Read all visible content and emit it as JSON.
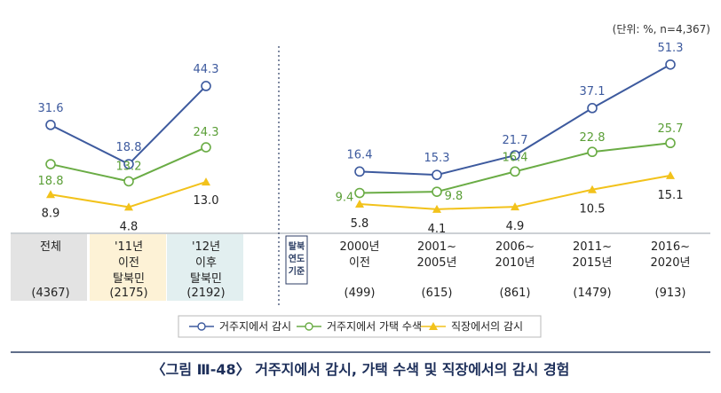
{
  "unit_note": "(단위: %, n=4,367)",
  "caption": "〈그림 Ⅲ-48〉 거주지에서 감시, 가택 수색 및 직장에서의 감시 경험",
  "side_label": [
    "탈북",
    "연도",
    "기준"
  ],
  "colors": {
    "series_residence_surveillance": "#3d5a9e",
    "series_house_search": "#6aac45",
    "series_workplace_surveillance": "#f2c21b",
    "label_blue": "#3d5a9e",
    "label_green": "#5a9e36",
    "label_dark": "#222222",
    "band_total": "#e3e3e3",
    "band_before2011": "#fdf2d6",
    "band_after2012": "#e2eff0",
    "rule": "#2c3e64"
  },
  "chart_data": [
    {
      "type": "line",
      "name": "by_period",
      "categories": [
        {
          "lines": [
            "전체"
          ],
          "n": "(4367)"
        },
        {
          "lines": [
            "'11년",
            "이전",
            "탈북민"
          ],
          "n": "(2175)"
        },
        {
          "lines": [
            "'12년",
            "이후",
            "탈북민"
          ],
          "n": "(2192)"
        }
      ],
      "series": [
        {
          "name": "거주지에서 감시",
          "values": [
            31.6,
            18.8,
            44.3
          ],
          "labels": [
            "31.6",
            "18.8",
            "44.3"
          ]
        },
        {
          "name": "거주지에서 가택 수색",
          "values": [
            18.8,
            13.2,
            24.3
          ],
          "labels": [
            "18.8",
            "13.2",
            "24.3"
          ]
        },
        {
          "name": "직장에서의 감시",
          "values": [
            8.9,
            4.8,
            13.0
          ],
          "labels": [
            "8.9",
            "4.8",
            "13.0"
          ]
        }
      ]
    },
    {
      "type": "line",
      "name": "by_defection_year",
      "categories": [
        {
          "lines": [
            "2000년",
            "이전"
          ],
          "n": "(499)"
        },
        {
          "lines": [
            "2001~",
            "2005년"
          ],
          "n": "(615)"
        },
        {
          "lines": [
            "2006~",
            "2010년"
          ],
          "n": "(861)"
        },
        {
          "lines": [
            "2011~",
            "2015년"
          ],
          "n": "(1479)"
        },
        {
          "lines": [
            "2016~",
            "2020년"
          ],
          "n": "(913)"
        }
      ],
      "series": [
        {
          "name": "거주지에서 감시",
          "values": [
            16.4,
            15.3,
            21.7,
            37.1,
            51.3
          ],
          "labels": [
            "16.4",
            "15.3",
            "21.7",
            "37.1",
            "51.3"
          ]
        },
        {
          "name": "거주지에서 가택 수색",
          "values": [
            9.4,
            9.8,
            16.4,
            22.8,
            25.7
          ],
          "labels": [
            "9.4",
            "9.8",
            "16.4",
            "22.8",
            "25.7"
          ]
        },
        {
          "name": "직장에서의 감시",
          "values": [
            5.8,
            4.1,
            4.9,
            10.5,
            15.1
          ],
          "labels": [
            "5.8",
            "4.1",
            "4.9",
            "10.5",
            "15.1"
          ]
        }
      ]
    }
  ],
  "legend": [
    {
      "label": "거주지에서 감시",
      "marker": "circle"
    },
    {
      "label": "거주지에서 가택 수색",
      "marker": "circle"
    },
    {
      "label": "직장에서의 감시",
      "marker": "triangle"
    }
  ]
}
